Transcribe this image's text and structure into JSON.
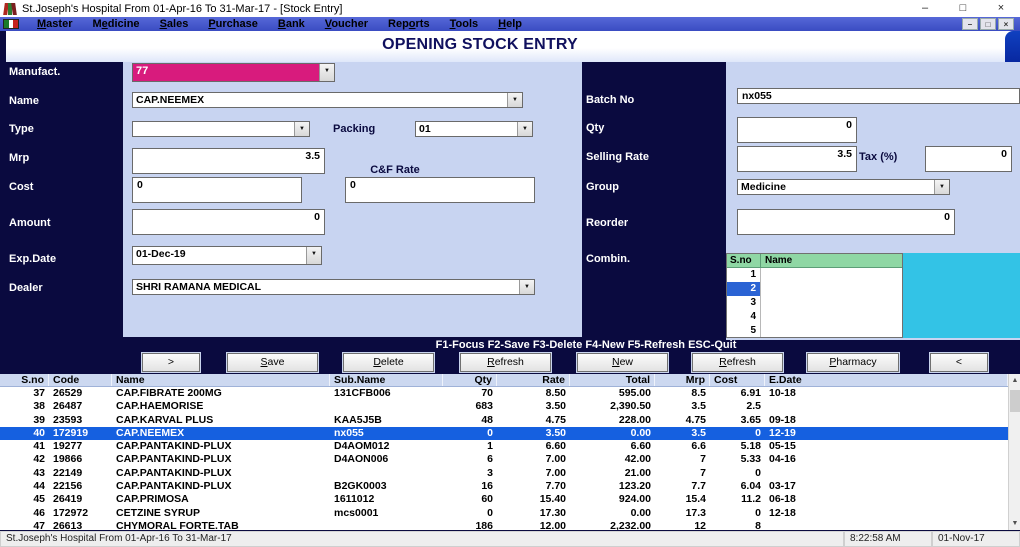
{
  "window": {
    "title": "St.Joseph's Hospital   From 01-Apr-16 To 31-Mar-17 - [Stock Entry]",
    "controls": {
      "minimize": "–",
      "maximize": "□",
      "close": "×"
    },
    "mdi_controls": {
      "minimize": "–",
      "restore": "□",
      "close": "×"
    }
  },
  "menu": {
    "items": [
      {
        "label": "Master",
        "u": 0
      },
      {
        "label": "Medicine",
        "u": 1
      },
      {
        "label": "Sales",
        "u": 0
      },
      {
        "label": "Purchase",
        "u": 0
      },
      {
        "label": "Bank",
        "u": 0
      },
      {
        "label": "Voucher",
        "u": 0
      },
      {
        "label": "Reports",
        "u": 3
      },
      {
        "label": "Tools",
        "u": 0
      },
      {
        "label": "Help",
        "u": 0
      }
    ]
  },
  "header": {
    "title": "OPENING STOCK ENTRY"
  },
  "form_left": {
    "manufact": {
      "label": "Manufact.",
      "value": "77"
    },
    "name": {
      "label": "Name",
      "value": "CAP.NEEMEX"
    },
    "type": {
      "label": "Type",
      "value": ""
    },
    "packing": {
      "label": "Packing",
      "value": "01"
    },
    "mrp": {
      "label": "Mrp",
      "value": "3.5"
    },
    "cf_rate": {
      "label": "C&F Rate",
      "value": "0"
    },
    "cost": {
      "label": "Cost",
      "value": "0"
    },
    "amount": {
      "label": "Amount",
      "value": "0"
    },
    "exp_date": {
      "label": "Exp.Date",
      "value": "01-Dec-19"
    },
    "dealer": {
      "label": "Dealer",
      "value": "SHRI RAMANA MEDICAL"
    }
  },
  "form_right": {
    "batch_no": {
      "label": "Batch No",
      "value": "nx055"
    },
    "qty": {
      "label": "Qty",
      "value": "0"
    },
    "selling_rate": {
      "label": "Selling Rate",
      "value": "3.5"
    },
    "tax": {
      "label": "Tax (%)",
      "value": "0"
    },
    "group": {
      "label": "Group",
      "value": "Medicine"
    },
    "reorder": {
      "label": "Reorder",
      "value": "0"
    },
    "combin": {
      "label": "Combin.",
      "columns": [
        "S.no",
        "Name"
      ],
      "rows": [
        "1",
        "2",
        "3",
        "4",
        "5"
      ],
      "selected": "2"
    }
  },
  "hint_bar": "F1-Focus F2-Save F3-Delete F4-New F5-Refresh ESC-Quit",
  "buttons": [
    {
      "label": ">",
      "u": -1
    },
    {
      "label": "Save",
      "u": 0
    },
    {
      "label": "Delete",
      "u": 0
    },
    {
      "label": "Refresh",
      "u": 0
    },
    {
      "label": "New",
      "u": 0
    },
    {
      "label": "Refresh",
      "u": 0
    },
    {
      "label": "Pharmacy",
      "u": 0
    },
    {
      "label": "<",
      "u": -1
    }
  ],
  "table": {
    "columns": [
      "S.no",
      "Code",
      "Name",
      "Sub.Name",
      "Qty",
      "Rate",
      "Total",
      "Mrp",
      "Cost",
      "E.Date"
    ],
    "selected_sno": "40",
    "rows": [
      [
        "37",
        "26529",
        "CAP.FIBRATE 200MG",
        "131CFB006",
        "70",
        "8.50",
        "595.00",
        "8.5",
        "6.91",
        "10-18"
      ],
      [
        "38",
        "26487",
        "CAP.HAEMORISE",
        "",
        "683",
        "3.50",
        "2,390.50",
        "3.5",
        "2.5",
        ""
      ],
      [
        "39",
        "23593",
        "CAP.KARVAL PLUS",
        "KAA5J5B",
        "48",
        "4.75",
        "228.00",
        "4.75",
        "3.65",
        "09-18"
      ],
      [
        "40",
        "172919",
        "CAP.NEEMEX",
        "nx055",
        "0",
        "3.50",
        "0.00",
        "3.5",
        "0",
        "12-19"
      ],
      [
        "41",
        "19277",
        "CAP.PANTAKIND-PLUX",
        "D4AOM012",
        "1",
        "6.60",
        "6.60",
        "6.6",
        "5.18",
        "05-15"
      ],
      [
        "42",
        "19866",
        "CAP.PANTAKIND-PLUX",
        "D4AON006",
        "6",
        "7.00",
        "42.00",
        "7",
        "5.33",
        "04-16"
      ],
      [
        "43",
        "22149",
        "CAP.PANTAKIND-PLUX",
        "",
        "3",
        "7.00",
        "21.00",
        "7",
        "0",
        ""
      ],
      [
        "44",
        "22156",
        "CAP.PANTAKIND-PLUX",
        "B2GK0003",
        "16",
        "7.70",
        "123.20",
        "7.7",
        "6.04",
        "03-17"
      ],
      [
        "45",
        "26419",
        "CAP.PRIMOSA",
        "1611012",
        "60",
        "15.40",
        "924.00",
        "15.4",
        "11.2",
        "06-18"
      ],
      [
        "46",
        "172972",
        "CETZINE SYRUP",
        "mcs0001",
        "0",
        "17.30",
        "0.00",
        "17.3",
        "0",
        "12-18"
      ],
      [
        "47",
        "26613",
        "CHYMORAL FORTE.TAB",
        "",
        "186",
        "12.00",
        "2,232.00",
        "12",
        "8",
        ""
      ]
    ]
  },
  "status_bar": {
    "left": "St.Joseph's Hospital   From 01-Apr-16 To 31-Mar-17",
    "time": "8:22:58 AM",
    "date": "01-Nov-17"
  },
  "colors": {
    "navy": "#0a0a3f",
    "panel": "#c8d4f1",
    "pink": "#d81b7d",
    "grid_header_green": "#8fd7a4",
    "cyan": "#33c3e6",
    "selected_row": "#1560e0"
  }
}
